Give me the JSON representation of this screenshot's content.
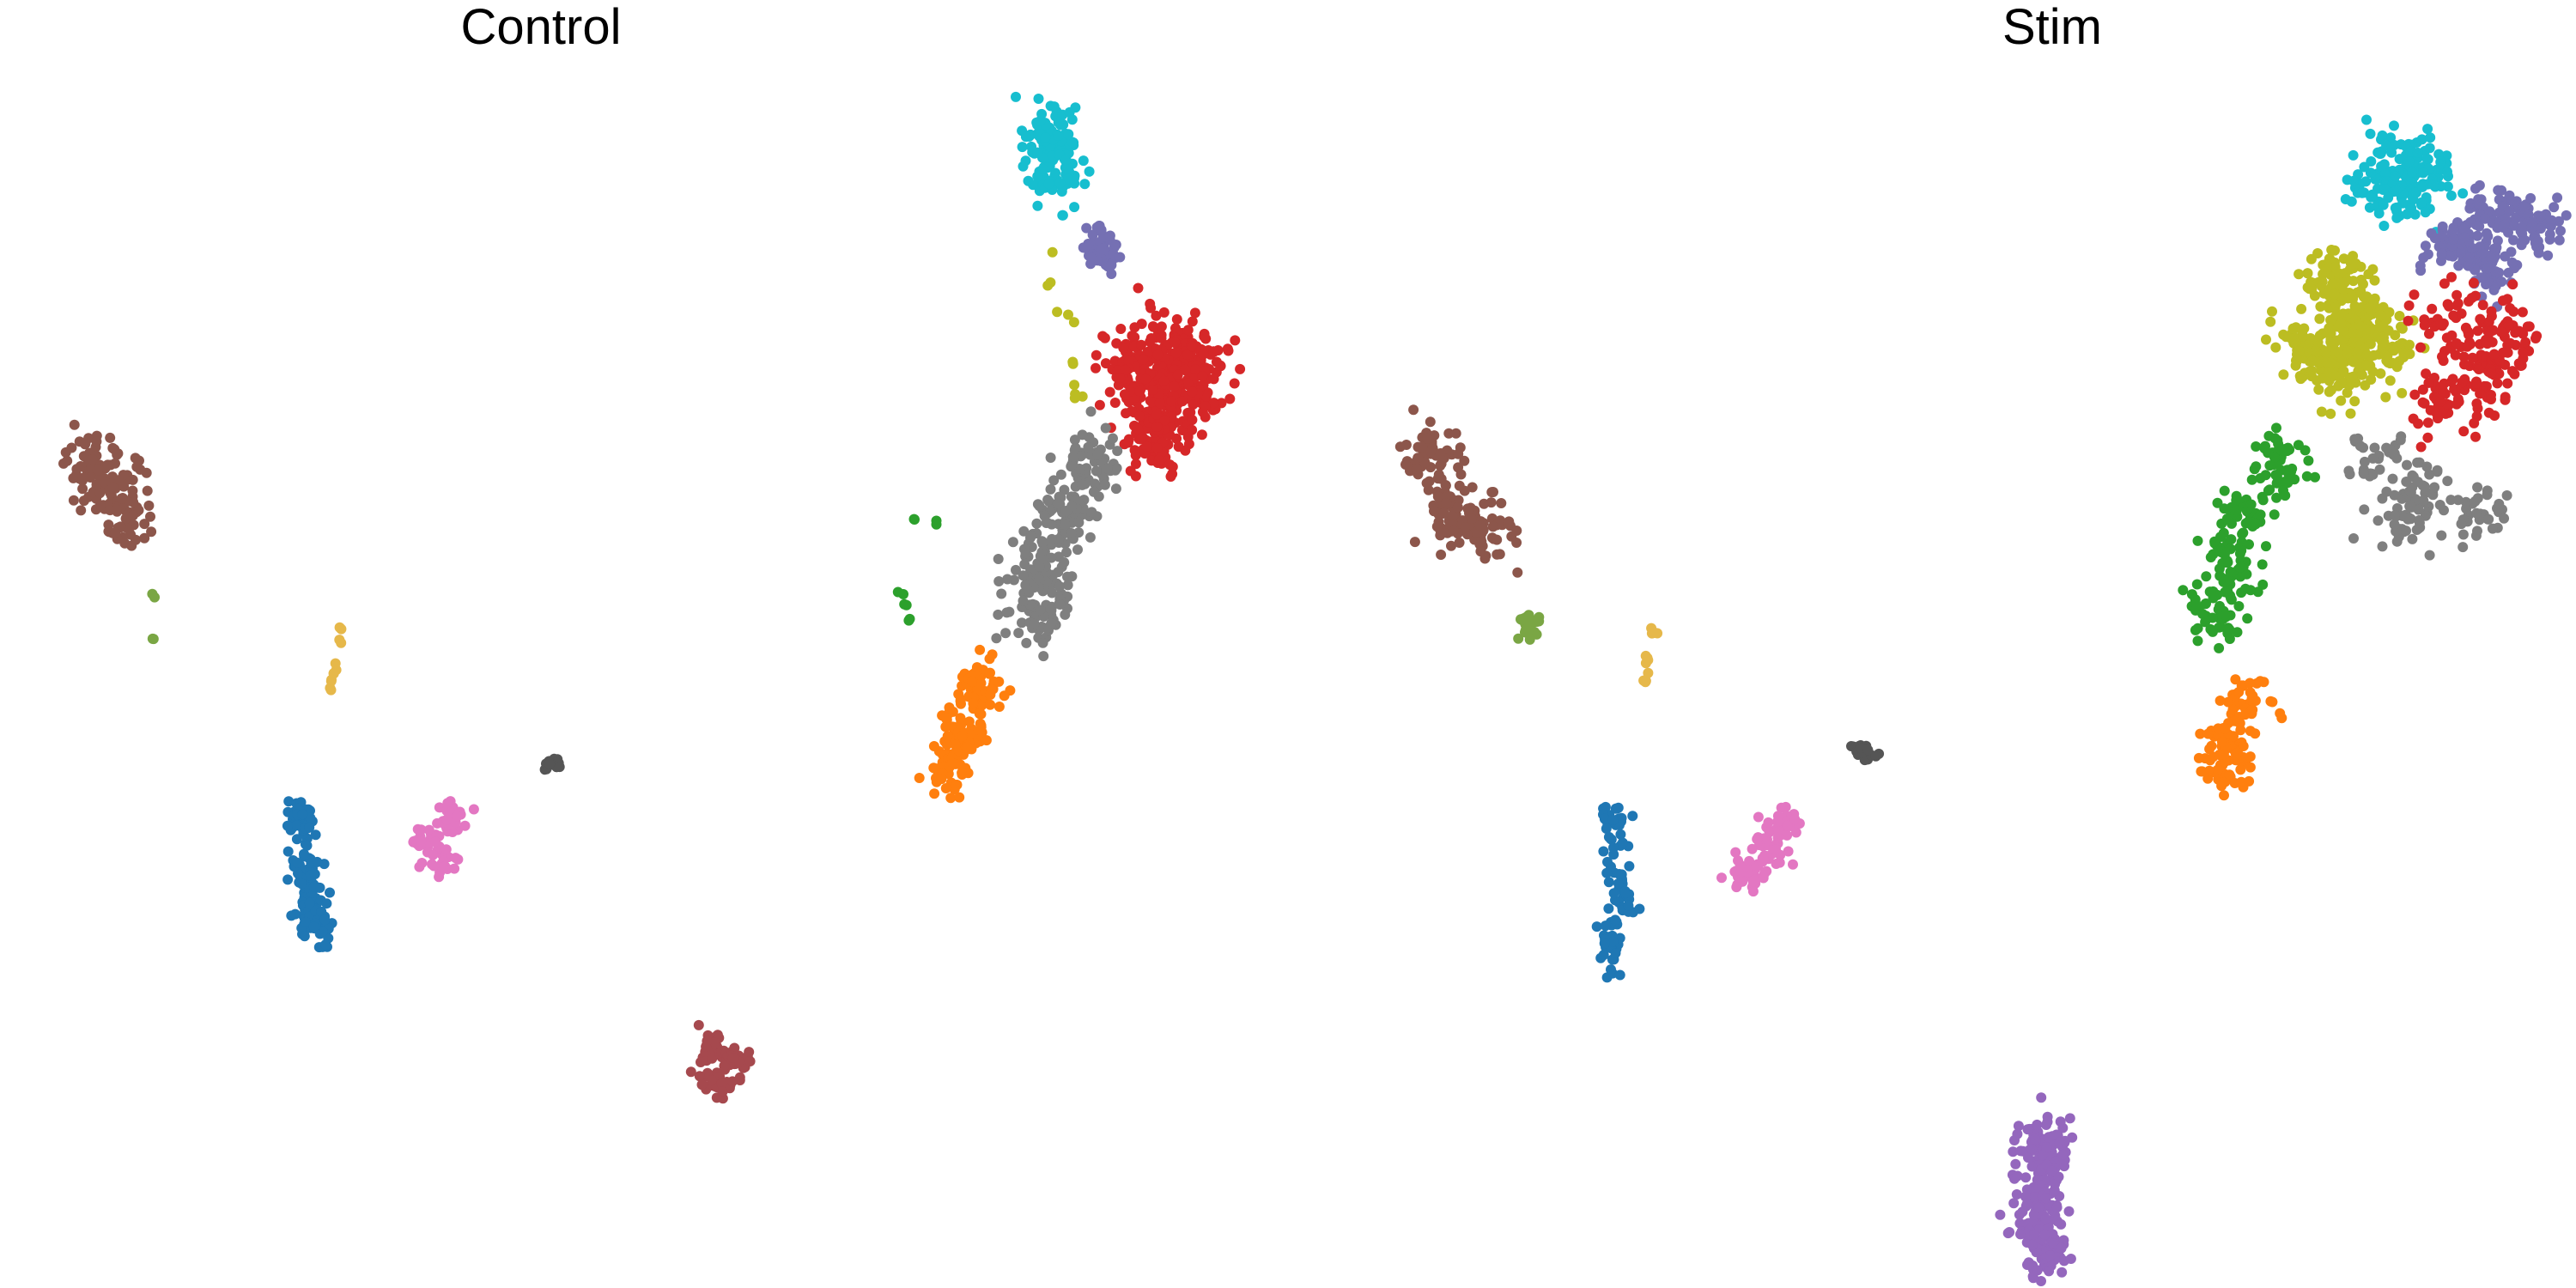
{
  "chart_data": [
    {
      "type": "scatter",
      "title": "Control",
      "xlabel": "",
      "ylabel": "",
      "grid": false,
      "legend": "none",
      "clusters": [
        {
          "color": "#17becf",
          "points": [
            [
              1225,
              155
            ],
            [
              1210,
              175
            ],
            [
              1245,
              185
            ],
            [
              1230,
              205
            ]
          ],
          "spread": [
            30,
            50
          ],
          "n": 130
        },
        {
          "color": "#7570b3",
          "points": [
            [
              1275,
              285
            ],
            [
              1285,
              300
            ]
          ],
          "spread": [
            20,
            18
          ],
          "n": 45
        },
        {
          "color": "#d62728",
          "points": [
            [
              1365,
              400
            ],
            [
              1400,
              440
            ],
            [
              1360,
              470
            ],
            [
              1320,
              430
            ],
            [
              1345,
              510
            ]
          ],
          "spread": [
            45,
            50
          ],
          "n": 420
        },
        {
          "color": "#7f7f7f",
          "points": [
            [
              1270,
              540
            ],
            [
              1245,
              600
            ],
            [
              1220,
              660
            ],
            [
              1205,
              710
            ]
          ],
          "spread": [
            40,
            45
          ],
          "n": 260
        },
        {
          "color": "#ff7f0e",
          "points": [
            [
              1145,
              800
            ],
            [
              1125,
              850
            ],
            [
              1105,
              890
            ]
          ],
          "spread": [
            28,
            40
          ],
          "n": 150
        },
        {
          "color": "#8c564b",
          "points": [
            [
              105,
              540
            ],
            [
              130,
              560
            ],
            [
              150,
              600
            ]
          ],
          "spread": [
            35,
            45
          ],
          "n": 140
        },
        {
          "color": "#1f77b4",
          "points": [
            [
              360,
              1060
            ],
            [
              370,
              1080
            ],
            [
              355,
              1020
            ],
            [
              350,
              960
            ]
          ],
          "spread": [
            22,
            30
          ],
          "n": 150
        },
        {
          "color": "#e377c2",
          "points": [
            [
              500,
              980
            ],
            [
              530,
              950
            ],
            [
              510,
              1000
            ]
          ],
          "spread": [
            25,
            22
          ],
          "n": 70
        },
        {
          "color": "#a6494e",
          "points": [
            [
              830,
              1220
            ],
            [
              855,
              1235
            ],
            [
              840,
              1260
            ]
          ],
          "spread": [
            25,
            22
          ],
          "n": 90
        },
        {
          "color": "#555555",
          "points": [
            [
              645,
              890
            ]
          ],
          "spread": [
            12,
            8
          ],
          "n": 18
        },
        {
          "color": "#e6b84a",
          "points": [
            [
              395,
              740
            ],
            [
              390,
              775
            ],
            [
              385,
              800
            ]
          ],
          "spread": [
            4,
            15
          ],
          "n": 10
        },
        {
          "color": "#2ca02c",
          "points": [
            [
              1050,
              690
            ],
            [
              1055,
              705
            ],
            [
              1060,
              720
            ],
            [
              1065,
              605
            ],
            [
              1090,
              612
            ]
          ],
          "spread": [
            6,
            6
          ],
          "n": 10
        },
        {
          "color": "#bcbd22",
          "points": [
            [
              1225,
              320
            ],
            [
              1240,
              360
            ],
            [
              1250,
              430
            ],
            [
              1255,
              470
            ]
          ],
          "spread": [
            18,
            30
          ],
          "n": 12
        },
        {
          "color": "#7aa644",
          "points": [
            [
              178,
              693
            ],
            [
              178,
              745
            ]
          ],
          "spread": [
            3,
            3
          ],
          "n": 4
        }
      ]
    },
    {
      "type": "scatter",
      "title": "Stim",
      "xlabel": "",
      "ylabel": "",
      "grid": false,
      "legend": "none",
      "clusters": [
        {
          "color": "#17becf",
          "points": [
            [
              1295,
              180
            ],
            [
              1330,
              200
            ],
            [
              1265,
              210
            ],
            [
              1300,
              230
            ]
          ],
          "spread": [
            40,
            35
          ],
          "n": 180
        },
        {
          "color": "#7570b3",
          "points": [
            [
              1405,
              250
            ],
            [
              1450,
              265
            ],
            [
              1395,
              310
            ],
            [
              1355,
              285
            ]
          ],
          "spread": [
            40,
            35
          ],
          "n": 240
        },
        {
          "color": "#bcbd22",
          "points": [
            [
              1220,
              330
            ],
            [
              1240,
              380
            ],
            [
              1230,
              430
            ],
            [
              1275,
              400
            ],
            [
              1190,
              410
            ]
          ],
          "spread": [
            45,
            45
          ],
          "n": 380
        },
        {
          "color": "#d62728",
          "points": [
            [
              1360,
              380
            ],
            [
              1400,
              430
            ],
            [
              1350,
              470
            ],
            [
              1420,
              390
            ]
          ],
          "spread": [
            45,
            50
          ],
          "n": 200
        },
        {
          "color": "#2ca02c",
          "points": [
            [
              1155,
              540
            ],
            [
              1115,
              600
            ],
            [
              1100,
              660
            ],
            [
              1080,
              710
            ]
          ],
          "spread": [
            35,
            40
          ],
          "n": 200
        },
        {
          "color": "#7f7f7f",
          "points": [
            [
              1270,
              530
            ],
            [
              1320,
              570
            ],
            [
              1300,
              610
            ],
            [
              1390,
              600
            ]
          ],
          "spread": [
            40,
            35
          ],
          "n": 130
        },
        {
          "color": "#ff7f0e",
          "points": [
            [
              1115,
              820
            ],
            [
              1095,
              860
            ],
            [
              1085,
              890
            ]
          ],
          "spread": [
            30,
            30
          ],
          "n": 120
        },
        {
          "color": "#8c564b",
          "points": [
            [
              170,
              530
            ],
            [
              190,
              600
            ],
            [
              230,
              620
            ]
          ],
          "spread": [
            40,
            45
          ],
          "n": 160
        },
        {
          "color": "#7aa644",
          "points": [
            [
              280,
              730
            ]
          ],
          "spread": [
            12,
            22
          ],
          "n": 30
        },
        {
          "color": "#1f77b4",
          "points": [
            [
              375,
              1100
            ],
            [
              390,
              1040
            ],
            [
              380,
              960
            ]
          ],
          "spread": [
            18,
            40
          ],
          "n": 90
        },
        {
          "color": "#e377c2",
          "points": [
            [
              575,
              960
            ],
            [
              560,
              1000
            ],
            [
              540,
              1020
            ]
          ],
          "spread": [
            28,
            25
          ],
          "n": 90
        },
        {
          "color": "#9467bd",
          "points": [
            [
              880,
              1340
            ],
            [
              875,
              1400
            ],
            [
              880,
              1450
            ]
          ],
          "spread": [
            30,
            45
          ],
          "n": 260
        },
        {
          "color": "#555555",
          "points": [
            [
              670,
              875
            ]
          ],
          "spread": [
            15,
            12
          ],
          "n": 22
        },
        {
          "color": "#e6b84a",
          "points": [
            [
              425,
              735
            ],
            [
              420,
              770
            ],
            [
              415,
              790
            ]
          ],
          "spread": [
            4,
            12
          ],
          "n": 10
        }
      ]
    }
  ]
}
